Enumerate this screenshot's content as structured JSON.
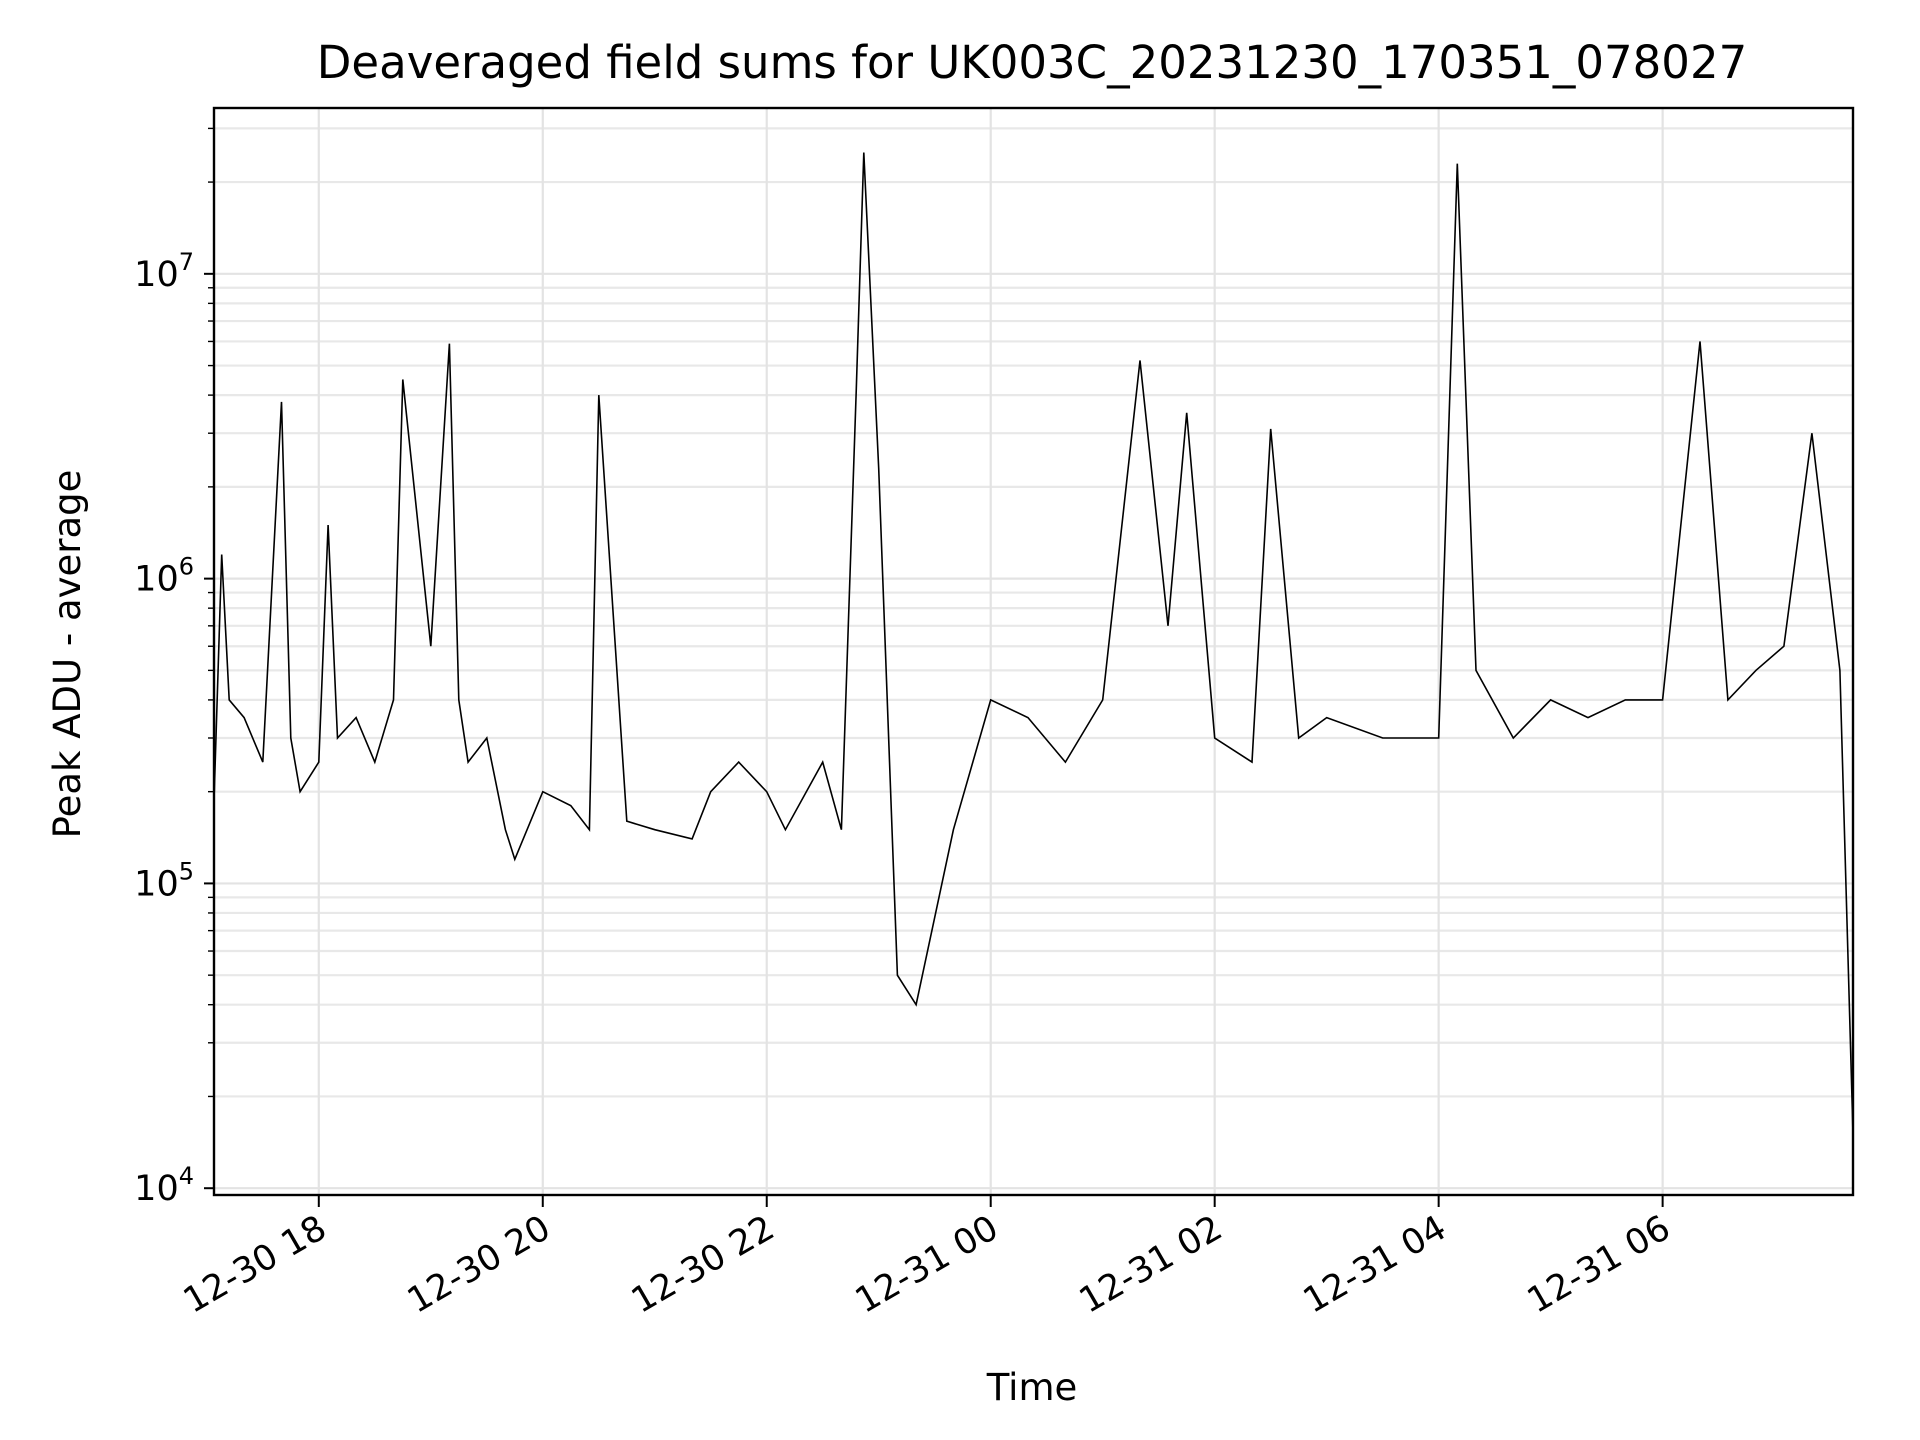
{
  "chart_data": {
    "type": "line",
    "title": "Deaveraged field sums for UK003C_20231230_170351_078027",
    "xlabel": "Time",
    "ylabel": "Peak ADU - average",
    "yscale": "log",
    "ylim": [
      9500,
      35000000
    ],
    "xlim": [
      "2023-12-30 17:03:51",
      "2023-12-31 07:42:00"
    ],
    "grid": true,
    "x_ticks": [
      {
        "value": "2023-12-30 18:00",
        "label": "12-30 18"
      },
      {
        "value": "2023-12-30 20:00",
        "label": "12-30 20"
      },
      {
        "value": "2023-12-30 22:00",
        "label": "12-30 22"
      },
      {
        "value": "2023-12-31 00:00",
        "label": "12-31 00"
      },
      {
        "value": "2023-12-31 02:00",
        "label": "12-31 02"
      },
      {
        "value": "2023-12-31 04:00",
        "label": "12-31 04"
      },
      {
        "value": "2023-12-31 06:00",
        "label": "12-31 06"
      }
    ],
    "y_ticks": [
      {
        "value": 10000,
        "base": "10",
        "exp": "4"
      },
      {
        "value": 100000,
        "base": "10",
        "exp": "5"
      },
      {
        "value": 1000000,
        "base": "10",
        "exp": "6"
      },
      {
        "value": 10000000,
        "base": "10",
        "exp": "7"
      }
    ],
    "series": [
      {
        "color": "#000000",
        "x": [
          "2023-12-30 17:04",
          "2023-12-30 17:08",
          "2023-12-30 17:12",
          "2023-12-30 17:20",
          "2023-12-30 17:30",
          "2023-12-30 17:40",
          "2023-12-30 17:45",
          "2023-12-30 17:50",
          "2023-12-30 18:00",
          "2023-12-30 18:05",
          "2023-12-30 18:10",
          "2023-12-30 18:20",
          "2023-12-30 18:30",
          "2023-12-30 18:40",
          "2023-12-30 18:45",
          "2023-12-30 19:00",
          "2023-12-30 19:10",
          "2023-12-30 19:15",
          "2023-12-30 19:20",
          "2023-12-30 19:30",
          "2023-12-30 19:40",
          "2023-12-30 19:45",
          "2023-12-30 20:00",
          "2023-12-30 20:15",
          "2023-12-30 20:25",
          "2023-12-30 20:30",
          "2023-12-30 20:45",
          "2023-12-30 21:00",
          "2023-12-30 21:20",
          "2023-12-30 21:30",
          "2023-12-30 21:45",
          "2023-12-30 22:00",
          "2023-12-30 22:10",
          "2023-12-30 22:30",
          "2023-12-30 22:40",
          "2023-12-30 22:48",
          "2023-12-30 22:52",
          "2023-12-30 23:00",
          "2023-12-30 23:10",
          "2023-12-30 23:20",
          "2023-12-30 23:40",
          "2023-12-31 00:00",
          "2023-12-31 00:20",
          "2023-12-31 00:40",
          "2023-12-31 01:00",
          "2023-12-31 01:20",
          "2023-12-31 01:35",
          "2023-12-31 01:45",
          "2023-12-31 02:00",
          "2023-12-31 02:20",
          "2023-12-31 02:30",
          "2023-12-31 02:45",
          "2023-12-31 03:00",
          "2023-12-31 03:30",
          "2023-12-31 04:00",
          "2023-12-31 04:10",
          "2023-12-31 04:20",
          "2023-12-31 04:40",
          "2023-12-31 05:00",
          "2023-12-31 05:20",
          "2023-12-31 05:40",
          "2023-12-31 06:00",
          "2023-12-31 06:20",
          "2023-12-31 06:35",
          "2023-12-31 06:50",
          "2023-12-31 07:05",
          "2023-12-31 07:20",
          "2023-12-31 07:35",
          "2023-12-31 07:42"
        ],
        "y": [
          200000,
          1200000,
          400000,
          350000,
          250000,
          3800000,
          300000,
          200000,
          250000,
          1500000,
          300000,
          350000,
          250000,
          400000,
          4500000,
          600000,
          5900000,
          400000,
          250000,
          300000,
          150000,
          120000,
          200000,
          180000,
          150000,
          4000000,
          160000,
          150000,
          140000,
          200000,
          250000,
          200000,
          150000,
          250000,
          150000,
          4200000,
          25000000,
          2300000,
          50000,
          40000,
          150000,
          400000,
          350000,
          250000,
          400000,
          5200000,
          700000,
          3500000,
          300000,
          250000,
          3100000,
          300000,
          350000,
          300000,
          300000,
          23000000,
          500000,
          300000,
          400000,
          350000,
          400000,
          400000,
          6000000,
          400000,
          500000,
          600000,
          3000000,
          500000,
          15000
        ]
      }
    ]
  }
}
